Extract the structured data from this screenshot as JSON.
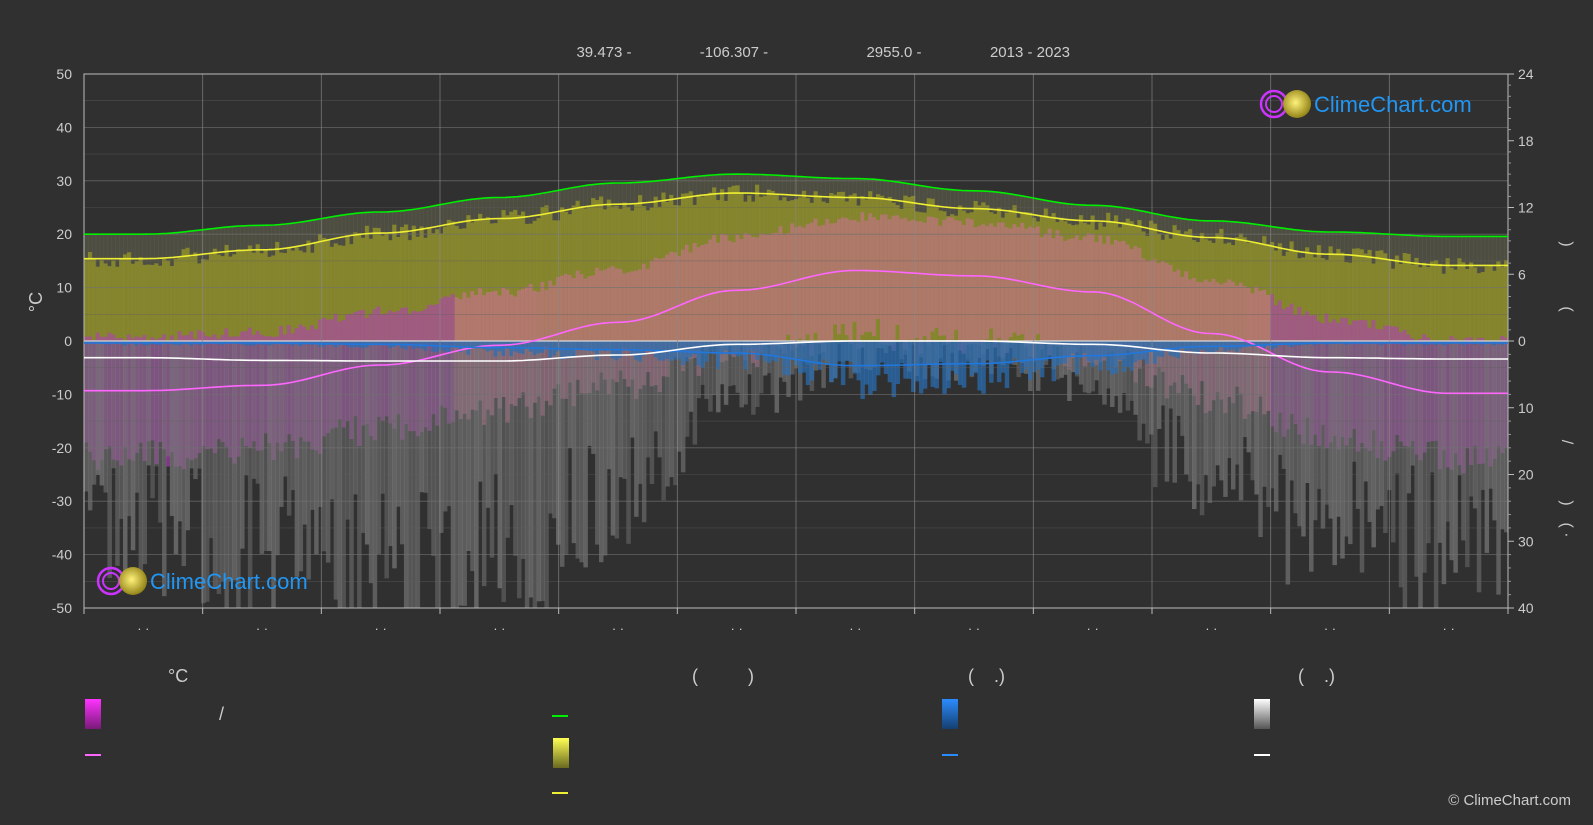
{
  "header": {
    "lat": "39.473 -",
    "lon": "-106.307 -",
    "elev": "2955.0 -",
    "years": "2013 - 2023"
  },
  "brand": {
    "logo_top": "ClimeChart.com",
    "logo_bottom": "ClimeChart.com",
    "copyright": "© ClimeChart.com"
  },
  "legend": {
    "col1_header": "°C",
    "col1_slash": "/",
    "col2_header": "(          )",
    "col3_header": "(    .)",
    "col4_header": "(    .)"
  },
  "colors": {
    "background": "#303030",
    "grid": "#666666",
    "daylight": "#00ee00",
    "sunshine": "#eeee33",
    "max_temp": "#ff66ff",
    "rain": "#2277dd",
    "snow": "#ffffff",
    "brand_text": "#2196f3"
  },
  "chart_data": {
    "type": "line",
    "left_axis": {
      "label": "°C",
      "ticks": [
        "50",
        "40",
        "30",
        "20",
        "10",
        "0",
        "-10",
        "-20",
        "-30",
        "-40",
        "-50"
      ],
      "range": [
        -50,
        50
      ]
    },
    "right_axis_top": {
      "ticks": [
        "24",
        "18",
        "12",
        "6",
        "0"
      ],
      "range": [
        0,
        24
      ]
    },
    "right_axis_bottom": {
      "ticks": [
        "10",
        "20",
        "30",
        "40"
      ],
      "range": [
        0,
        40
      ]
    },
    "right_axis_label_fragments": [
      ")",
      "(",
      "/",
      ")",
      "(   ·"
    ],
    "x_ticks": [
      "· ·",
      "· ·",
      "· ·",
      "· ·",
      "· ·",
      "· ·",
      "· ·",
      "· ·",
      "· ·",
      "· ·",
      "· ·",
      "· ·"
    ],
    "grid": true,
    "series": [
      {
        "key": "daylight",
        "values": [
          9.6,
          10.4,
          11.6,
          12.9,
          14.2,
          15.0,
          14.6,
          13.5,
          12.2,
          10.8,
          9.8,
          9.4
        ]
      },
      {
        "key": "sunshine",
        "values": [
          7.4,
          8.2,
          9.7,
          11.0,
          12.3,
          13.3,
          12.9,
          11.9,
          10.8,
          9.3,
          7.8,
          6.8
        ]
      },
      {
        "key": "temp_line",
        "values": [
          -9.3,
          -8.3,
          -4.5,
          -0.8,
          3.5,
          9.5,
          13.2,
          12.2,
          9.2,
          1.4,
          -5.8,
          -9.8
        ]
      },
      {
        "key": "rain",
        "values": [
          0.3,
          0.3,
          0.5,
          1.0,
          1.3,
          1.8,
          3.7,
          3.4,
          2.2,
          0.8,
          0.3,
          0.3
        ]
      },
      {
        "key": "snow",
        "values": [
          2.5,
          2.9,
          3.0,
          3.0,
          2.1,
          0.5,
          0.0,
          0.0,
          0.5,
          1.8,
          2.5,
          2.7
        ]
      }
    ]
  }
}
